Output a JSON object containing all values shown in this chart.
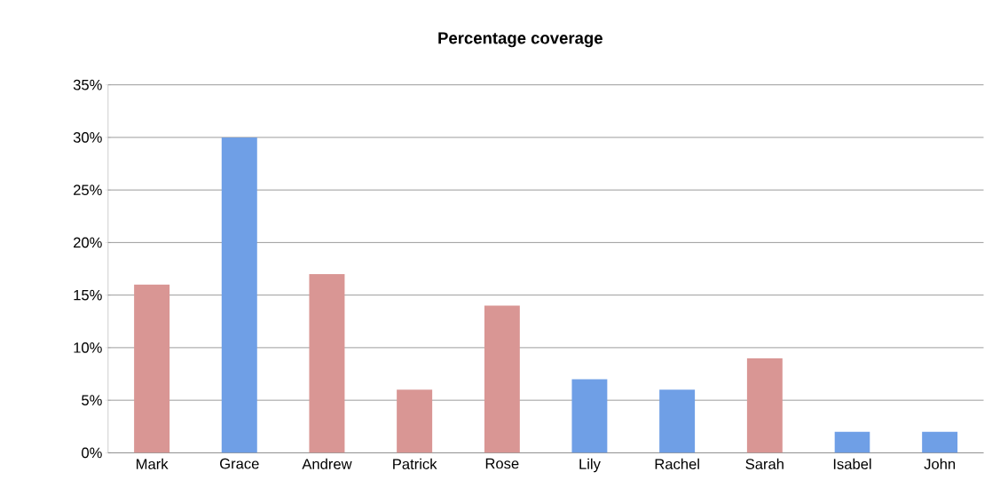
{
  "chart_data": {
    "type": "bar",
    "title": "Percentage coverage",
    "categories": [
      "Mark",
      "Grace",
      "Andrew",
      "Patrick",
      "Rose",
      "Lily",
      "Rachel",
      "Sarah",
      "Isabel",
      "John"
    ],
    "values": [
      16,
      30,
      17,
      6,
      14,
      7,
      6,
      9,
      2,
      2
    ],
    "colors": [
      "#d99694",
      "#6f9fe6",
      "#d99694",
      "#d99694",
      "#d99694",
      "#6f9fe6",
      "#6f9fe6",
      "#d99694",
      "#6f9fe6",
      "#6f9fe6"
    ],
    "ylim": [
      0,
      35
    ],
    "yticks": [
      {
        "value": 0,
        "label": "0%"
      },
      {
        "value": 5,
        "label": "5%"
      },
      {
        "value": 10,
        "label": "10%"
      },
      {
        "value": 15,
        "label": "15%"
      },
      {
        "value": 20,
        "label": "20%"
      },
      {
        "value": 25,
        "label": "25%"
      },
      {
        "value": 30,
        "label": "30%"
      },
      {
        "value": 35,
        "label": "35%"
      }
    ],
    "grid": "y"
  }
}
